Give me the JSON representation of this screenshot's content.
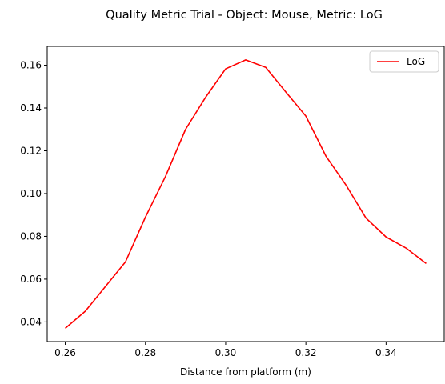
{
  "chart_data": {
    "type": "line",
    "title": "Quality Metric Trial - Object: Mouse, Metric: LoG",
    "xlabel": "Distance from platform (m)",
    "ylabel": "",
    "xlim": [
      0.2555,
      0.3545
    ],
    "ylim": [
      0.0308,
      0.1688
    ],
    "xticks": [
      0.26,
      0.28,
      0.3,
      0.32,
      0.34
    ],
    "xtick_labels": [
      "0.26",
      "0.28",
      "0.30",
      "0.32",
      "0.34"
    ],
    "yticks": [
      0.04,
      0.06,
      0.08,
      0.1,
      0.12,
      0.14,
      0.16
    ],
    "ytick_labels": [
      "0.04",
      "0.06",
      "0.08",
      "0.10",
      "0.12",
      "0.14",
      "0.16"
    ],
    "grid": false,
    "legend_position": "upper right",
    "series": [
      {
        "name": "LoG",
        "color": "#ff0000",
        "x": [
          0.26,
          0.265,
          0.27,
          0.275,
          0.28,
          0.285,
          0.29,
          0.295,
          0.3,
          0.305,
          0.31,
          0.315,
          0.32,
          0.325,
          0.33,
          0.335,
          0.34,
          0.345,
          0.35
        ],
        "y": [
          0.037,
          0.045,
          0.0565,
          0.068,
          0.089,
          0.108,
          0.13,
          0.145,
          0.1583,
          0.1625,
          0.159,
          0.1475,
          0.1362,
          0.1175,
          0.104,
          0.0885,
          0.0797,
          0.0745,
          0.0673
        ]
      }
    ]
  }
}
